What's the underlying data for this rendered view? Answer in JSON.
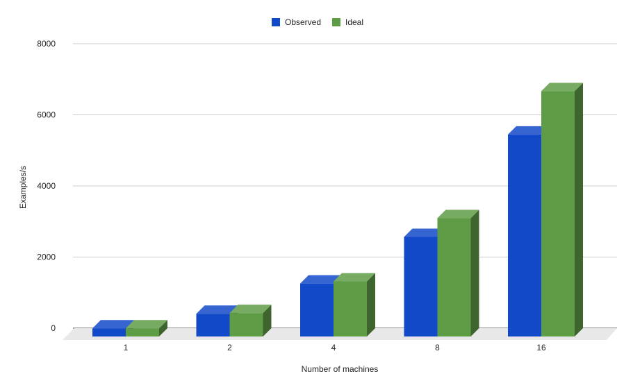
{
  "chart_data": {
    "type": "bar",
    "title": "",
    "xlabel": "Number of machines",
    "ylabel": "Examples/s",
    "categories": [
      "1",
      "2",
      "4",
      "8",
      "16"
    ],
    "series": [
      {
        "name": "Observed",
        "color": "#1249c9",
        "values": [
          230,
          640,
          1490,
          2800,
          5680
        ]
      },
      {
        "name": "Ideal",
        "color": "#5f9c46",
        "values": [
          230,
          660,
          1550,
          3330,
          6900
        ]
      }
    ],
    "ylim": [
      0,
      8000
    ],
    "yticks": [
      "0",
      "2000",
      "4000",
      "6000",
      "8000"
    ],
    "grid": true,
    "legend_position": "top-center",
    "style": "3d"
  }
}
